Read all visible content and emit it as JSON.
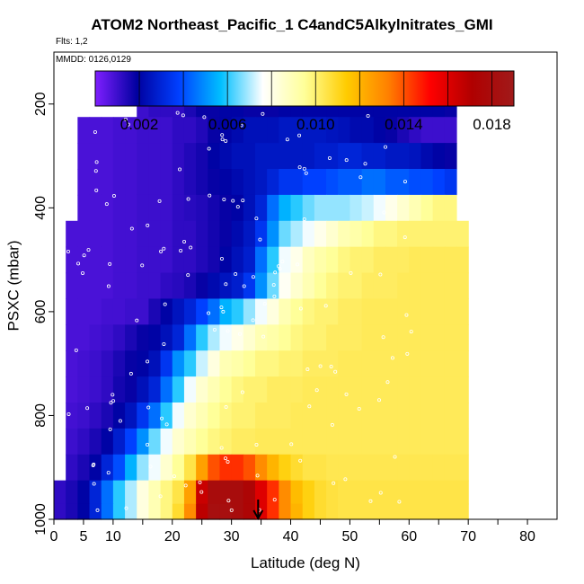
{
  "header": {
    "title": "ATOM2 Northeast_Pacific_1 C4andC5Alkylnitrates_GMI",
    "flights": "Flts: 1,2",
    "mmdd": "MMDD: 0126,0129"
  },
  "chart_data": {
    "type": "heatmap",
    "title": "ATOM2 Northeast_Pacific_1 C4andC5Alkylnitrates_GMI",
    "xlabel": "Latitude (deg N)",
    "ylabel": "PSXC (mbar)",
    "xlim": [
      0,
      85
    ],
    "ylim": [
      1000,
      100
    ],
    "y_reversed": true,
    "x_ticks": [
      0,
      5,
      10,
      20,
      30,
      40,
      50,
      60,
      70,
      80
    ],
    "y_ticks": [
      200,
      400,
      600,
      800,
      1000
    ],
    "x_minor_ticks": [
      15,
      25,
      35,
      45,
      55,
      65,
      75
    ],
    "colorbar": {
      "min": 0.0,
      "max": 0.019,
      "ticks": [
        0.002,
        0.006,
        0.01,
        0.014,
        0.018
      ],
      "tick_labels": [
        "0.002",
        "0.006",
        "0.010",
        "0.014",
        "0.018"
      ],
      "colors": [
        "#7f1fff",
        "#0000a0",
        "#0040ff",
        "#00bfff",
        "#ffffff",
        "#ffff99",
        "#ffcc00",
        "#ff8000",
        "#ff0000",
        "#b00000",
        "#a01a1a"
      ]
    },
    "marker": {
      "x": 34.5,
      "label": "arrow"
    },
    "pressure_levels": [
      200,
      250,
      300,
      350,
      400,
      450,
      500,
      550,
      600,
      650,
      700,
      750,
      800,
      850,
      900,
      950,
      990
    ],
    "latitudes": [
      1,
      3,
      5,
      7,
      9,
      11,
      13,
      15,
      17,
      19,
      21,
      23,
      25,
      27,
      29,
      31,
      33,
      35,
      37,
      39,
      41,
      43,
      45,
      47,
      49,
      51,
      53,
      55,
      57,
      59,
      61,
      63,
      65,
      67,
      69
    ],
    "values": [
      [
        null,
        null,
        null,
        null,
        null,
        null,
        null,
        0.001,
        0.0012,
        0.0012,
        0.0012,
        0.0015,
        0.0018,
        0.0018,
        0.002,
        0.002,
        0.0018,
        0.0018,
        0.0018,
        0.002,
        0.002,
        0.002,
        0.002,
        0.002,
        0.002,
        0.002,
        0.002,
        0.002,
        0.002,
        0.002,
        0.002,
        0.002,
        0.002,
        0.0018,
        null
      ],
      [
        null,
        null,
        0.0008,
        0.0008,
        0.0008,
        0.0009,
        0.0009,
        0.001,
        0.001,
        0.001,
        0.0012,
        0.0012,
        0.0014,
        0.0018,
        0.002,
        0.0022,
        0.0024,
        0.0024,
        0.0024,
        0.0026,
        0.0026,
        0.0026,
        0.0026,
        0.0025,
        0.0024,
        0.0022,
        0.0022,
        0.002,
        0.0018,
        0.0015,
        0.0012,
        0.001,
        0.001,
        0.001,
        null
      ],
      [
        null,
        null,
        0.0008,
        0.0008,
        0.0008,
        0.0009,
        0.0009,
        0.001,
        0.001,
        0.001,
        0.0012,
        0.0014,
        0.0016,
        0.002,
        0.0022,
        0.0024,
        0.0024,
        0.0026,
        0.0026,
        0.0026,
        0.0026,
        0.0026,
        0.0028,
        0.0028,
        0.003,
        0.003,
        0.0028,
        0.0028,
        0.0026,
        0.0026,
        0.0025,
        0.0022,
        0.002,
        0.0018,
        null
      ],
      [
        null,
        null,
        0.0008,
        0.0008,
        0.0008,
        0.0009,
        0.0009,
        0.001,
        0.001,
        0.001,
        0.0012,
        0.0014,
        0.0016,
        0.0018,
        0.002,
        0.0022,
        0.0024,
        0.0026,
        0.003,
        0.0035,
        0.0035,
        0.0038,
        0.0038,
        0.004,
        0.0042,
        0.0042,
        0.0045,
        0.0045,
        0.0042,
        0.0042,
        0.004,
        0.004,
        0.0038,
        0.0035,
        null
      ],
      [
        null,
        null,
        0.0008,
        0.0008,
        0.0008,
        0.0009,
        0.0009,
        0.001,
        0.001,
        0.001,
        0.0012,
        0.0013,
        0.0014,
        0.0016,
        0.0018,
        0.002,
        0.0024,
        0.003,
        0.0045,
        0.0055,
        0.006,
        0.0065,
        0.0068,
        0.0068,
        0.0068,
        0.007,
        0.0072,
        0.0075,
        0.008,
        0.0085,
        0.009,
        0.0095,
        0.0098,
        0.0098,
        null
      ],
      [
        null,
        0.0008,
        0.0008,
        0.0008,
        0.0008,
        0.0009,
        0.0009,
        0.001,
        0.001,
        0.001,
        0.0012,
        0.0012,
        0.0014,
        0.0016,
        0.0018,
        0.0022,
        0.0026,
        0.0035,
        0.005,
        0.0065,
        0.007,
        0.0075,
        0.008,
        0.0085,
        0.009,
        0.0092,
        0.0095,
        0.0098,
        0.0098,
        0.01,
        0.01,
        0.01,
        0.01,
        0.01,
        0.01
      ],
      [
        null,
        0.0008,
        0.0008,
        0.0008,
        0.0008,
        0.0009,
        0.0009,
        0.001,
        0.001,
        0.001,
        0.0012,
        0.0012,
        0.0014,
        0.0016,
        0.002,
        0.0024,
        0.0028,
        0.0045,
        0.006,
        0.0075,
        0.008,
        0.0088,
        0.0092,
        0.0095,
        0.0098,
        0.01,
        0.01,
        0.0102,
        0.0102,
        0.0102,
        0.0103,
        0.0103,
        0.0103,
        0.0103,
        0.0103
      ],
      [
        null,
        0.0008,
        0.0008,
        0.0008,
        0.0008,
        0.0009,
        0.0009,
        0.001,
        0.001,
        0.0012,
        0.0013,
        0.0015,
        0.0018,
        0.0022,
        0.0025,
        0.0028,
        0.0035,
        0.005,
        0.0065,
        0.0078,
        0.0085,
        0.009,
        0.0095,
        0.0098,
        0.01,
        0.01,
        0.0102,
        0.0102,
        0.0102,
        0.0103,
        0.0103,
        0.0103,
        0.0103,
        0.0103,
        0.0103
      ],
      [
        null,
        0.0008,
        0.0008,
        0.0008,
        0.0009,
        0.0009,
        0.001,
        0.001,
        0.0015,
        0.002,
        0.0025,
        0.003,
        0.0038,
        0.0045,
        0.0055,
        0.006,
        0.0068,
        0.0075,
        0.0082,
        0.009,
        0.0095,
        0.0098,
        0.01,
        0.01,
        0.0102,
        0.0102,
        0.0103,
        0.0103,
        0.0103,
        0.0103,
        0.0103,
        0.0103,
        0.0103,
        0.0103,
        0.0103
      ],
      [
        null,
        0.0008,
        0.0008,
        0.0009,
        0.001,
        0.0012,
        0.0015,
        0.0018,
        0.002,
        0.0024,
        0.003,
        0.0045,
        0.006,
        0.007,
        0.0075,
        0.008,
        0.0085,
        0.009,
        0.0092,
        0.0095,
        0.0098,
        0.01,
        0.01,
        0.0102,
        0.0102,
        0.0102,
        0.0103,
        0.0103,
        0.0103,
        0.0103,
        0.0103,
        0.0103,
        0.0103,
        0.0103,
        0.0103
      ],
      [
        null,
        0.0008,
        0.0009,
        0.001,
        0.0012,
        0.0015,
        0.0018,
        0.002,
        0.0024,
        0.0035,
        0.005,
        0.006,
        0.0072,
        0.0082,
        0.009,
        0.0092,
        0.0095,
        0.0098,
        0.0098,
        0.01,
        0.01,
        0.0102,
        0.0102,
        0.0102,
        0.0103,
        0.0103,
        0.0103,
        0.0103,
        0.0103,
        0.0103,
        0.0103,
        0.0103,
        0.0103,
        0.0103,
        0.0103
      ],
      [
        null,
        0.0008,
        0.0009,
        0.001,
        0.0012,
        0.0016,
        0.0018,
        0.0024,
        0.003,
        0.0045,
        0.006,
        0.0075,
        0.0085,
        0.009,
        0.0095,
        0.0098,
        0.01,
        0.01,
        0.0102,
        0.0102,
        0.0102,
        0.0103,
        0.0103,
        0.0103,
        0.0103,
        0.0103,
        0.0103,
        0.0103,
        0.0103,
        0.0103,
        0.0103,
        0.0103,
        0.0103,
        0.0103,
        0.0103
      ],
      [
        null,
        0.0009,
        0.001,
        0.0012,
        0.0015,
        0.002,
        0.0025,
        0.0035,
        0.0045,
        0.006,
        0.0075,
        0.0085,
        0.009,
        0.0095,
        0.0098,
        0.01,
        0.01,
        0.0102,
        0.0102,
        0.0102,
        0.0103,
        0.0103,
        0.0103,
        0.0103,
        0.0103,
        0.0103,
        0.0103,
        0.0103,
        0.0103,
        0.0103,
        0.0103,
        0.0103,
        0.0103,
        0.0103,
        0.0103
      ],
      [
        null,
        0.001,
        0.0012,
        0.0015,
        0.002,
        0.0028,
        0.0038,
        0.005,
        0.0065,
        0.0075,
        0.0085,
        0.009,
        0.0095,
        0.0098,
        0.01,
        0.0102,
        0.0102,
        0.0103,
        0.0103,
        0.0103,
        0.0103,
        0.0103,
        0.0103,
        0.0103,
        0.0103,
        0.0103,
        0.0103,
        0.0103,
        0.0103,
        0.0103,
        0.0103,
        0.0103,
        0.0103,
        0.0103,
        0.0103
      ],
      [
        null,
        0.0012,
        0.0015,
        0.002,
        0.003,
        0.004,
        0.0055,
        0.0068,
        0.0075,
        0.0085,
        0.0095,
        0.0105,
        0.0125,
        0.014,
        0.0145,
        0.0145,
        0.014,
        0.013,
        0.012,
        0.0112,
        0.0108,
        0.0105,
        0.0105,
        0.0104,
        0.0104,
        0.0104,
        0.0104,
        0.0104,
        0.0104,
        0.0104,
        0.0104,
        0.0104,
        0.0104,
        0.0104,
        0.0104
      ],
      [
        0.0012,
        0.0015,
        0.002,
        0.003,
        0.0045,
        0.006,
        0.007,
        0.0082,
        0.009,
        0.0098,
        0.0105,
        0.0125,
        0.0165,
        0.018,
        0.018,
        0.018,
        0.0175,
        0.016,
        0.0145,
        0.013,
        0.0118,
        0.0112,
        0.0108,
        0.0106,
        0.0105,
        0.0105,
        0.0105,
        0.0105,
        0.0105,
        0.0105,
        0.0105,
        0.0105,
        0.0105,
        0.0105,
        0.0105
      ],
      [
        0.0012,
        0.0015,
        0.002,
        0.003,
        0.0045,
        0.006,
        0.007,
        0.0082,
        0.009,
        0.0098,
        0.0108,
        0.013,
        0.0168,
        0.0182,
        0.0182,
        0.018,
        0.0175,
        0.016,
        0.0145,
        0.013,
        0.012,
        0.0112,
        0.0108,
        0.0106,
        0.0105,
        0.0105,
        0.0105,
        0.0105,
        0.0105,
        0.0105,
        0.0105,
        0.0105,
        0.0105,
        0.0105,
        0.0105
      ]
    ]
  }
}
